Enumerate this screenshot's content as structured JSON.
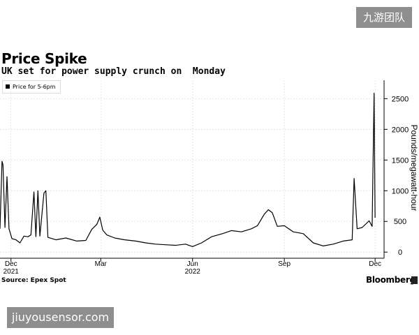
{
  "watermark_top": "九游团队",
  "watermark_bottom": "jiuyousensor.com",
  "source": "Source: Epex Spot",
  "brand": "Bloomberg",
  "chart_data": {
    "type": "line",
    "title": "Price Spike",
    "subtitle": "UK set for power supply crunch on  Monday",
    "legend": "Price for 5-6pm",
    "ylabel": "Pounds/megawatt-hour",
    "xlabel": "",
    "ylim": [
      -100,
      2800
    ],
    "yticks": [
      0,
      500,
      1000,
      1500,
      2000,
      2500
    ],
    "xlim": [
      "2021-11-20",
      "2022-12-10"
    ],
    "xticks": [
      {
        "date": "2021-12-01",
        "label": "Dec",
        "sublabel": "2021"
      },
      {
        "date": "2022-03-01",
        "label": "Mar",
        "sublabel": ""
      },
      {
        "date": "2022-06-01",
        "label": "Jun",
        "sublabel": "2022"
      },
      {
        "date": "2022-09-01",
        "label": "Sep",
        "sublabel": ""
      },
      {
        "date": "2022-12-01",
        "label": "Dec",
        "sublabel": ""
      }
    ],
    "grid": true,
    "legend_position": "top-left",
    "color": "#000000",
    "series": [
      {
        "name": "Price for 5-6pm",
        "points": [
          [
            "2021-11-20",
            380
          ],
          [
            "2021-11-22",
            1480
          ],
          [
            "2021-11-23",
            1420
          ],
          [
            "2021-11-25",
            400
          ],
          [
            "2021-11-27",
            1230
          ],
          [
            "2021-11-29",
            380
          ],
          [
            "2021-12-02",
            220
          ],
          [
            "2021-12-06",
            200
          ],
          [
            "2021-12-10",
            150
          ],
          [
            "2021-12-14",
            260
          ],
          [
            "2021-12-18",
            250
          ],
          [
            "2021-12-21",
            280
          ],
          [
            "2021-12-24",
            980
          ],
          [
            "2021-12-26",
            250
          ],
          [
            "2021-12-28",
            1000
          ],
          [
            "2021-12-30",
            260
          ],
          [
            "2022-01-03",
            960
          ],
          [
            "2022-01-05",
            1000
          ],
          [
            "2022-01-07",
            240
          ],
          [
            "2022-01-15",
            200
          ],
          [
            "2022-01-25",
            230
          ],
          [
            "2022-02-05",
            180
          ],
          [
            "2022-02-14",
            190
          ],
          [
            "2022-02-20",
            370
          ],
          [
            "2022-02-25",
            450
          ],
          [
            "2022-02-28",
            570
          ],
          [
            "2022-03-03",
            360
          ],
          [
            "2022-03-07",
            280
          ],
          [
            "2022-03-15",
            230
          ],
          [
            "2022-03-25",
            200
          ],
          [
            "2022-04-05",
            180
          ],
          [
            "2022-04-15",
            150
          ],
          [
            "2022-04-25",
            130
          ],
          [
            "2022-05-05",
            120
          ],
          [
            "2022-05-15",
            110
          ],
          [
            "2022-05-25",
            130
          ],
          [
            "2022-06-01",
            90
          ],
          [
            "2022-06-10",
            150
          ],
          [
            "2022-06-20",
            250
          ],
          [
            "2022-07-01",
            300
          ],
          [
            "2022-07-10",
            350
          ],
          [
            "2022-07-20",
            330
          ],
          [
            "2022-07-30",
            380
          ],
          [
            "2022-08-05",
            430
          ],
          [
            "2022-08-12",
            620
          ],
          [
            "2022-08-16",
            690
          ],
          [
            "2022-08-20",
            640
          ],
          [
            "2022-08-25",
            420
          ],
          [
            "2022-09-01",
            430
          ],
          [
            "2022-09-10",
            330
          ],
          [
            "2022-09-20",
            300
          ],
          [
            "2022-09-30",
            150
          ],
          [
            "2022-10-10",
            100
          ],
          [
            "2022-10-20",
            130
          ],
          [
            "2022-10-30",
            180
          ],
          [
            "2022-11-08",
            200
          ],
          [
            "2022-11-10",
            1200
          ],
          [
            "2022-11-13",
            380
          ],
          [
            "2022-11-18",
            400
          ],
          [
            "2022-11-25",
            510
          ],
          [
            "2022-11-28",
            420
          ],
          [
            "2022-11-30",
            2590
          ],
          [
            "2022-12-01",
            560
          ]
        ]
      }
    ]
  }
}
